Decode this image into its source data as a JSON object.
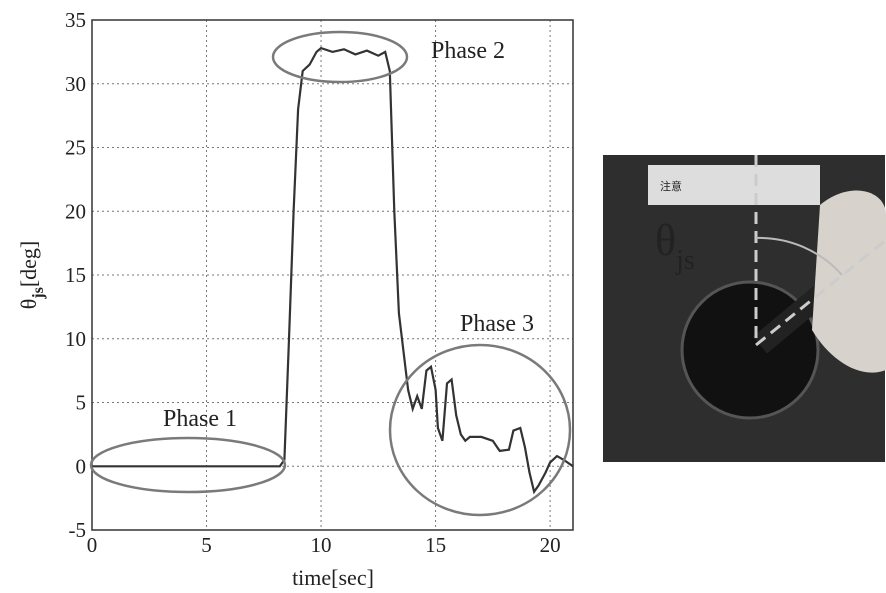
{
  "chart_data": {
    "type": "line",
    "xlabel": "time[sec]",
    "ylabel": {
      "symbol": "θ",
      "sub": "js",
      "unit": "[deg]"
    },
    "x": [
      0,
      8.2,
      8.4,
      8.6,
      8.8,
      9.0,
      9.2,
      9.5,
      9.8,
      10,
      10.5,
      11,
      11.5,
      12,
      12.5,
      12.8,
      13,
      13.2,
      13.4,
      13.6,
      13.8,
      14,
      14.2,
      14.4,
      14.6,
      14.8,
      15,
      15.1,
      15.3,
      15.5,
      15.7,
      15.9,
      16.1,
      16.3,
      16.5,
      17,
      17.5,
      17.8,
      18.2,
      18.4,
      18.7,
      18.9,
      19.1,
      19.3,
      19.5,
      19.8,
      20,
      20.3,
      20.6,
      21
    ],
    "values": [
      0,
      0,
      0.5,
      10,
      20,
      28,
      31,
      31.5,
      32.5,
      32.8,
      32.5,
      32.7,
      32.3,
      32.6,
      32.2,
      32.5,
      31,
      20,
      12,
      9,
      6,
      4.5,
      5.5,
      4.5,
      7.5,
      7.8,
      6,
      3,
      2,
      6.5,
      6.8,
      4,
      2.5,
      2,
      2.3,
      2.3,
      2,
      1.2,
      1.3,
      2.8,
      3,
      1.5,
      -0.5,
      -2,
      -1.5,
      -0.5,
      0.3,
      0.8,
      0.5,
      0
    ],
    "color": "#333333",
    "xlim": [
      0,
      21
    ],
    "xticks": [
      0,
      5,
      10,
      15,
      20
    ],
    "ylim": [
      -5,
      35
    ],
    "yticks": [
      -5,
      0,
      5,
      10,
      15,
      20,
      25,
      30,
      35
    ],
    "grid": true,
    "annotations": [
      "Phase 1",
      "Phase 2",
      "Phase 3"
    ]
  },
  "photo": {
    "warning": "注意",
    "label": {
      "symbol": "θ",
      "sub": "js"
    }
  }
}
